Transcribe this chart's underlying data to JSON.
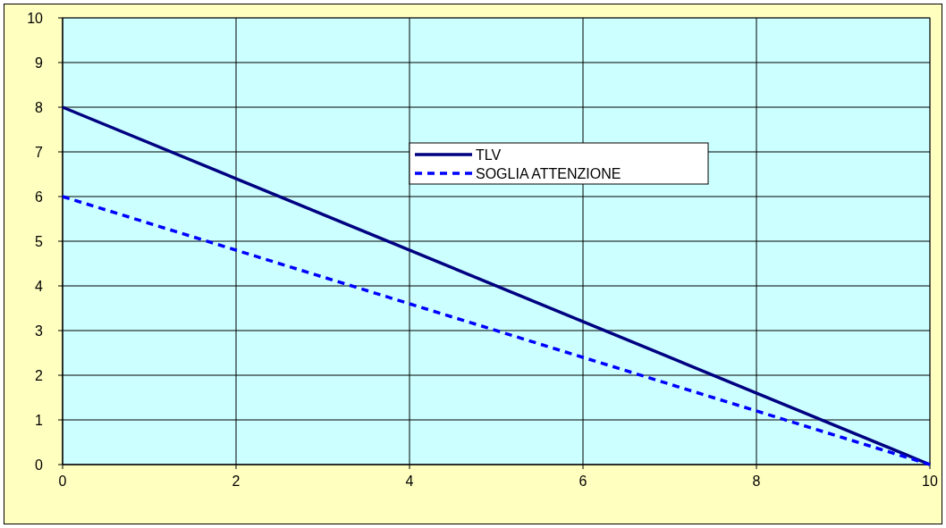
{
  "chart_data": {
    "type": "line",
    "x": [
      0,
      10
    ],
    "xlim": [
      0,
      10
    ],
    "xticks": [
      0,
      2,
      4,
      6,
      8,
      10
    ],
    "ylim": [
      0,
      10
    ],
    "yticks": [
      0,
      1,
      2,
      3,
      4,
      5,
      6,
      7,
      8,
      9,
      10
    ],
    "grid": true,
    "legend": "top right",
    "marker": "none",
    "series": [
      {
        "name": "TLV",
        "color": "#000080",
        "values": [
          8,
          0
        ],
        "line_style": "solid"
      },
      {
        "name": "SOGLIA ATTENZIONE",
        "color": "#0000ff",
        "values": [
          6,
          0
        ],
        "line_style": "dashed"
      }
    ]
  }
}
